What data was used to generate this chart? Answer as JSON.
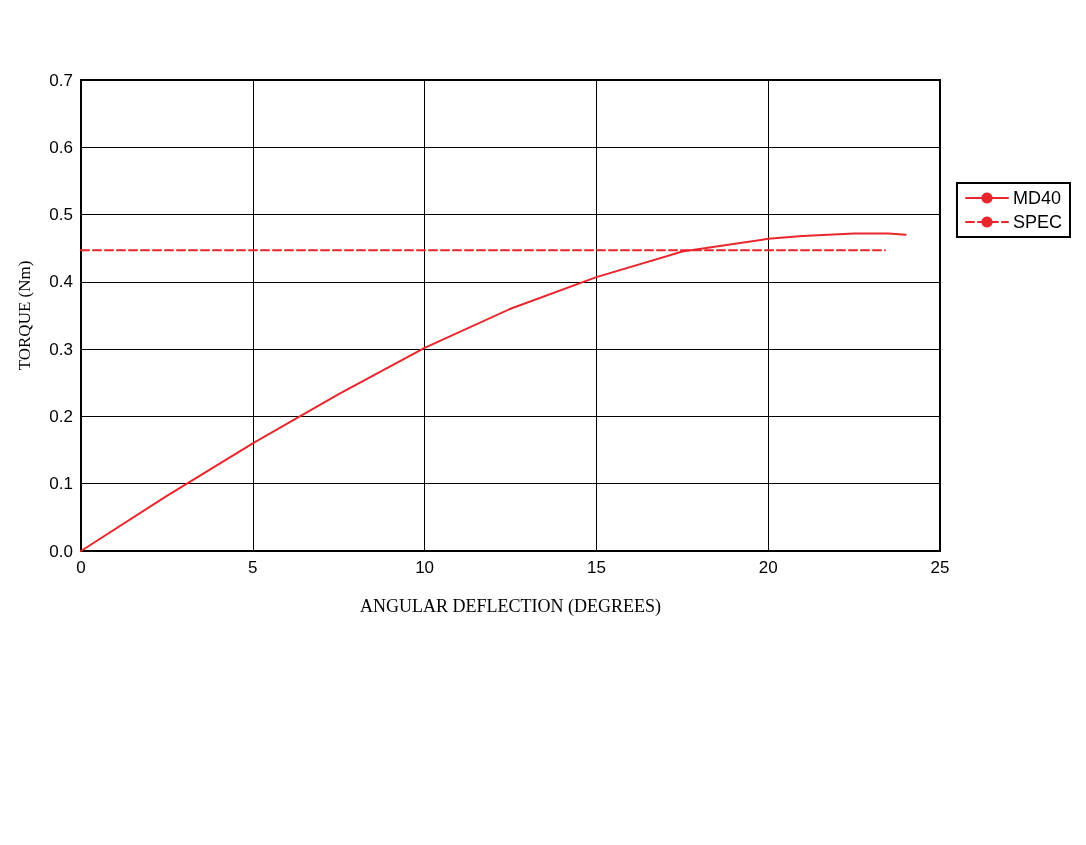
{
  "chart_data": {
    "type": "line",
    "xlabel": "ANGULAR DEFLECTION (DEGREES)",
    "ylabel": "TORQUE (Nm)",
    "xlim": [
      0,
      25
    ],
    "xticks": [
      0,
      5,
      10,
      15,
      20,
      25
    ],
    "ylim": [
      0,
      0.7
    ],
    "yticks": [
      {
        "value": 0,
        "label": "0.0"
      },
      0.1,
      0.2,
      0.3,
      0.4,
      0.5,
      0.6,
      0.7
    ],
    "grid": true,
    "legend": "right",
    "marker": "none",
    "series": [
      {
        "name": "MD40",
        "color": "#e8262b",
        "line_style": "solid",
        "x": [
          0,
          2.5,
          5,
          7.5,
          10,
          12.5,
          15,
          17.5,
          20,
          21,
          22.5,
          23.5,
          24
        ],
        "values": [
          0,
          0.082,
          0.16,
          0.233,
          0.302,
          0.36,
          0.407,
          0.445,
          0.464,
          0.468,
          0.472,
          0.472,
          0.47
        ]
      },
      {
        "name": "SPEC",
        "color": "#e8262b",
        "line_style": "dashed",
        "x": [
          0,
          23.4
        ],
        "values": [
          0.447,
          0.447
        ]
      }
    ]
  }
}
